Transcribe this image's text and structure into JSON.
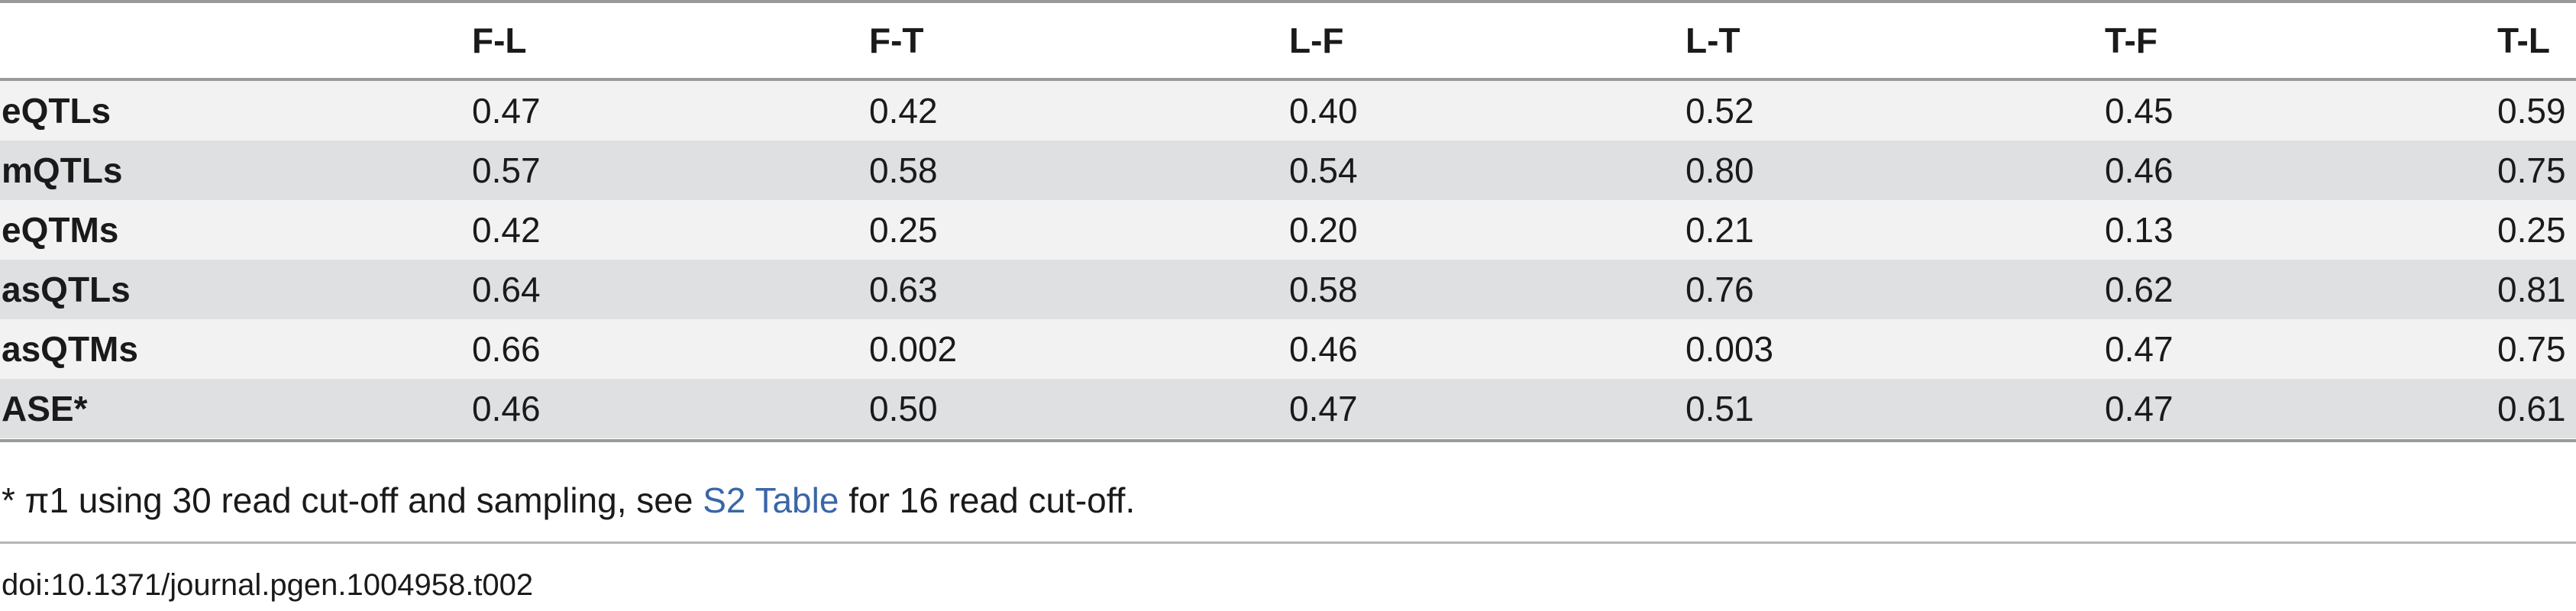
{
  "table": {
    "columns": [
      "",
      "F-L",
      "F-T",
      "L-F",
      "L-T",
      "T-F",
      "T-L"
    ],
    "rows": [
      {
        "label": "eQTLs",
        "values": [
          "0.47",
          "0.42",
          "0.40",
          "0.52",
          "0.45",
          "0.59"
        ]
      },
      {
        "label": "mQTLs",
        "values": [
          "0.57",
          "0.58",
          "0.54",
          "0.80",
          "0.46",
          "0.75"
        ]
      },
      {
        "label": "eQTMs",
        "values": [
          "0.42",
          "0.25",
          "0.20",
          "0.21",
          "0.13",
          "0.25"
        ]
      },
      {
        "label": "asQTLs",
        "values": [
          "0.64",
          "0.63",
          "0.58",
          "0.76",
          "0.62",
          "0.81"
        ]
      },
      {
        "label": "asQTMs",
        "values": [
          "0.66",
          "0.002",
          "0.46",
          "0.003",
          "0.47",
          "0.75"
        ]
      },
      {
        "label": "ASE*",
        "values": [
          "0.46",
          "0.50",
          "0.47",
          "0.51",
          "0.47",
          "0.61"
        ]
      }
    ]
  },
  "footnote": {
    "prefix": "* π1 using 30 read cut-off and sampling, see ",
    "link": "S2 Table",
    "suffix": " for 16 read cut-off."
  },
  "doi": "doi:10.1371/journal.pgen.1004958.t002"
}
